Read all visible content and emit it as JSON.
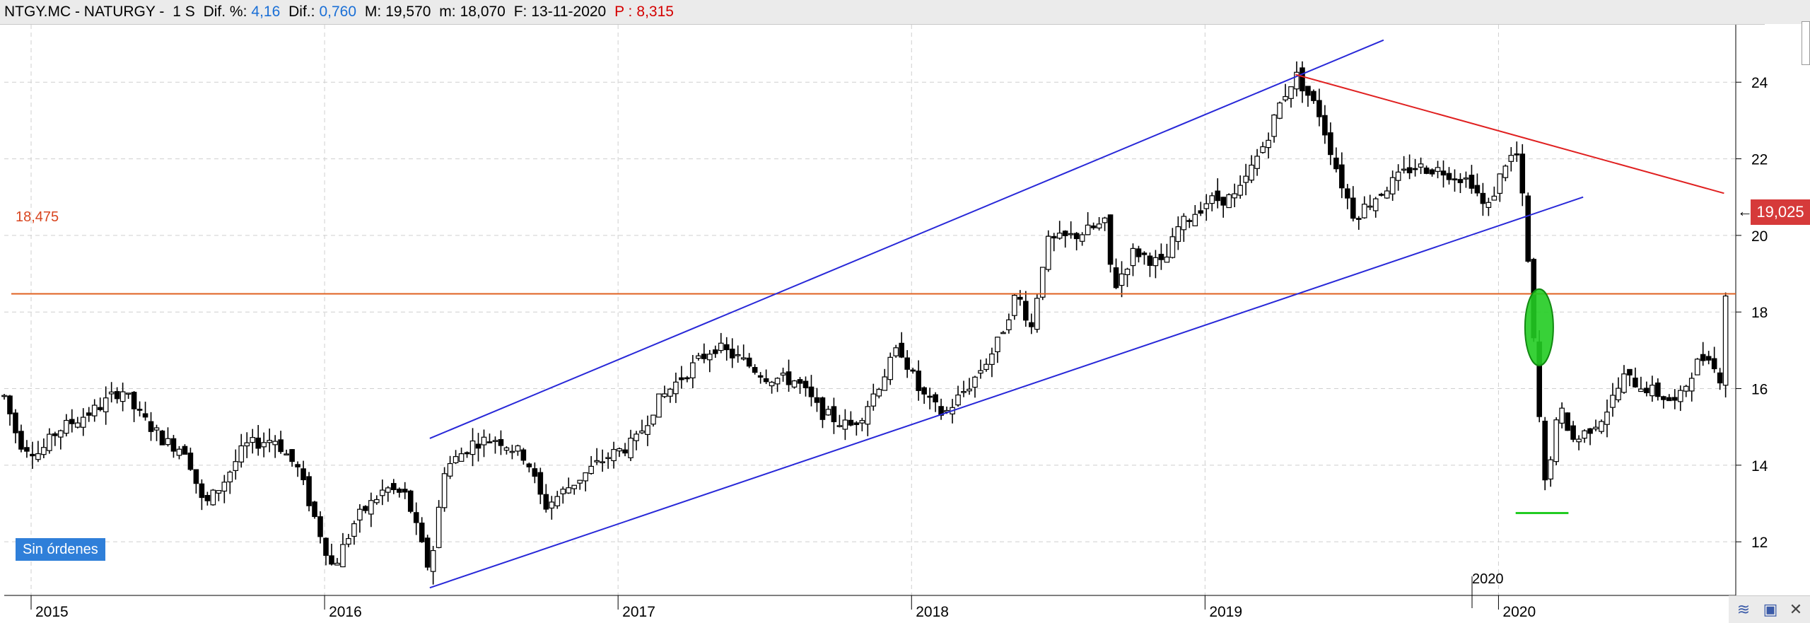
{
  "header": {
    "symbol": "NTGY.MC - NATURGY -",
    "period": "1 S",
    "dif_pct_label": "Dif. %:",
    "dif_pct_value": "4,16",
    "dif_label": "Dif.:",
    "dif_value": "0,760",
    "max_label": "M:",
    "max_value": "19,570",
    "min_label": "m:",
    "min_value": "18,070",
    "date_label": "F:",
    "date_value": "13-11-2020",
    "p_label": "P :",
    "p_value": "8,315"
  },
  "orders_badge": "Sin órdenes",
  "price_tag": "19,025",
  "level_label": "18,475",
  "year_overlay": "2020",
  "colors": {
    "channel": "#2828d8",
    "resistance": "#e02020",
    "level": "#e06020",
    "green_marker": "#22cc22",
    "price_tag": "#d63a3a",
    "badge": "#2f7fd9"
  },
  "chart_data": {
    "type": "candlestick",
    "x_start": "2015-01",
    "x_end": "2020-11",
    "ylim": [
      10.6,
      25.5
    ],
    "y_ticks": [
      "24",
      "22",
      "20",
      "18",
      "16",
      "14",
      "12"
    ],
    "x_ticks": [
      "2015",
      "2016",
      "2017",
      "2018",
      "2019",
      "2020"
    ],
    "grid": true,
    "last_price": 19.025,
    "horizontal_level": 18.475,
    "price_path": [
      [
        2015.0,
        15.8
      ],
      [
        2015.05,
        14.6
      ],
      [
        2015.12,
        14.3
      ],
      [
        2015.18,
        14.9
      ],
      [
        2015.25,
        15.2
      ],
      [
        2015.32,
        15.5
      ],
      [
        2015.4,
        16.0
      ],
      [
        2015.45,
        15.4
      ],
      [
        2015.55,
        14.6
      ],
      [
        2015.62,
        14.4
      ],
      [
        2015.68,
        12.9
      ],
      [
        2015.75,
        13.6
      ],
      [
        2015.82,
        14.5
      ],
      [
        2015.92,
        14.7
      ],
      [
        2016.0,
        13.9
      ],
      [
        2016.05,
        12.8
      ],
      [
        2016.12,
        11.3
      ],
      [
        2016.2,
        12.6
      ],
      [
        2016.3,
        13.4
      ],
      [
        2016.37,
        13.2
      ],
      [
        2016.45,
        11.2
      ],
      [
        2016.5,
        13.9
      ],
      [
        2016.6,
        14.6
      ],
      [
        2016.68,
        14.7
      ],
      [
        2016.78,
        14.2
      ],
      [
        2016.84,
        12.9
      ],
      [
        2016.95,
        13.6
      ],
      [
        2017.05,
        14.2
      ],
      [
        2017.15,
        14.6
      ],
      [
        2017.22,
        15.6
      ],
      [
        2017.32,
        16.4
      ],
      [
        2017.42,
        17.1
      ],
      [
        2017.5,
        16.8
      ],
      [
        2017.6,
        16.3
      ],
      [
        2017.7,
        16.2
      ],
      [
        2017.78,
        15.4
      ],
      [
        2017.88,
        15.0
      ],
      [
        2017.92,
        15.3
      ],
      [
        2017.98,
        16.1
      ],
      [
        2018.05,
        17.1
      ],
      [
        2018.12,
        15.9
      ],
      [
        2018.2,
        15.3
      ],
      [
        2018.3,
        16.2
      ],
      [
        2018.38,
        17.1
      ],
      [
        2018.45,
        18.5
      ],
      [
        2018.5,
        17.6
      ],
      [
        2018.55,
        19.8
      ],
      [
        2018.65,
        20.0
      ],
      [
        2018.75,
        20.3
      ],
      [
        2018.78,
        18.6
      ],
      [
        2018.85,
        19.6
      ],
      [
        2018.95,
        19.2
      ],
      [
        2019.0,
        20.2
      ],
      [
        2019.1,
        20.9
      ],
      [
        2019.2,
        21.0
      ],
      [
        2019.3,
        22.5
      ],
      [
        2019.35,
        23.5
      ],
      [
        2019.4,
        24.2
      ],
      [
        2019.48,
        23.2
      ],
      [
        2019.55,
        21.5
      ],
      [
        2019.6,
        20.5
      ],
      [
        2019.7,
        21.2
      ],
      [
        2019.8,
        21.8
      ],
      [
        2019.9,
        21.7
      ],
      [
        2020.0,
        21.4
      ],
      [
        2020.05,
        20.6
      ],
      [
        2020.12,
        22.0
      ],
      [
        2020.16,
        22.1
      ],
      [
        2020.2,
        18.6
      ],
      [
        2020.22,
        16.2
      ],
      [
        2020.25,
        13.5
      ],
      [
        2020.3,
        15.5
      ],
      [
        2020.35,
        14.6
      ],
      [
        2020.45,
        15.3
      ],
      [
        2020.52,
        16.3
      ],
      [
        2020.6,
        16.0
      ],
      [
        2020.7,
        15.6
      ],
      [
        2020.76,
        16.6
      ],
      [
        2020.82,
        17.0
      ],
      [
        2020.84,
        15.6
      ],
      [
        2020.87,
        19.025
      ]
    ],
    "lines": [
      {
        "name": "channel-upper",
        "from": [
          2016.45,
          14.7
        ],
        "to": [
          2019.7,
          25.1
        ]
      },
      {
        "name": "channel-lower",
        "from": [
          2016.45,
          10.8
        ],
        "to": [
          2020.38,
          21.0
        ]
      },
      {
        "name": "resistance",
        "from": [
          2019.4,
          24.2
        ],
        "to": [
          2020.86,
          21.1
        ]
      },
      {
        "name": "support",
        "from": [
          2020.15,
          12.75
        ],
        "to": [
          2020.33,
          12.75
        ]
      }
    ],
    "marker": {
      "x": 2020.23,
      "y": 17.6,
      "ry": 1.0
    }
  }
}
